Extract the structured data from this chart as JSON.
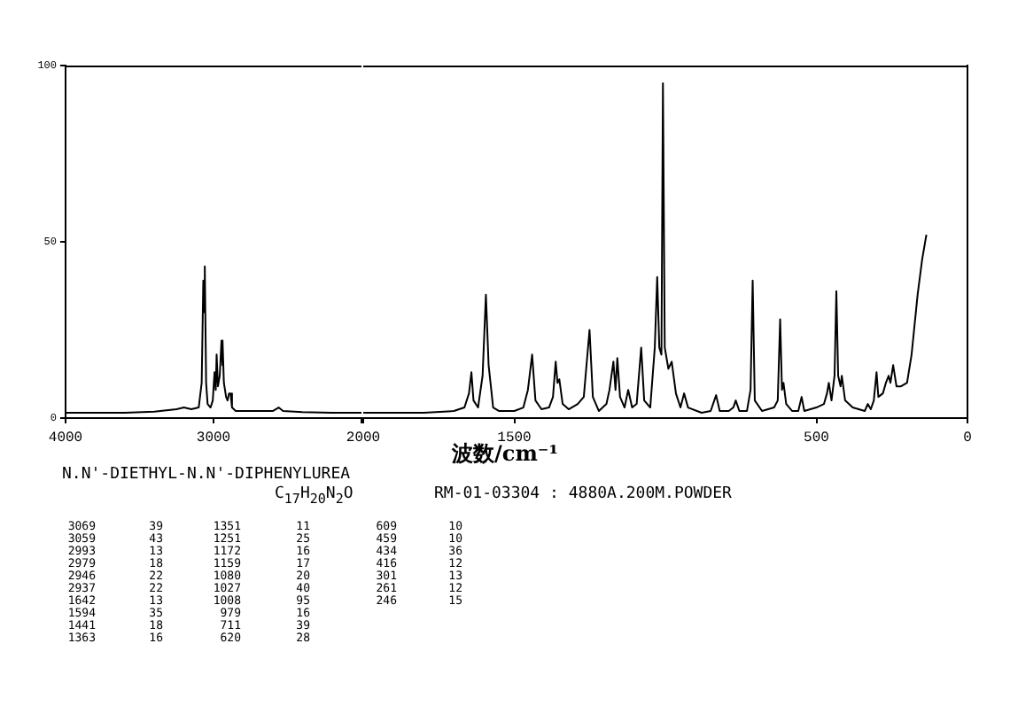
{
  "chart_data": [
    {
      "type": "line",
      "xlabel": "波数/cm⁻¹",
      "xlim": [
        4000,
        2000
      ],
      "xticks": [
        4000,
        3000,
        {
          "value": 2000,
          "label": null
        }
      ],
      "ylim": [
        0,
        100
      ],
      "yticks": [
        0,
        50,
        100
      ],
      "grid": false,
      "legend": false,
      "marker": "none",
      "annotations": [
        "N.N'-DIETHYL-N.N'-DIPHENYLUREA",
        "C$_{17}$H$_{20}$N$_{2}$O",
        "RM-01-03304 : 4880A.200M.POWDER",
        "3069",
        "39",
        "3059",
        "43",
        "2993",
        "13",
        "2979",
        "18",
        "2946",
        "22",
        "2937",
        "22",
        "1642",
        "13",
        "1594",
        "35",
        "1441",
        "18",
        "1363",
        "16",
        "1351",
        "11",
        "1251",
        "25",
        "1172",
        "16",
        "1159",
        "17",
        "1080",
        "20",
        "1027",
        "40",
        "1008",
        "95",
        "979",
        "16",
        "711",
        "39",
        "620",
        "28",
        "609",
        "10",
        "459",
        "10",
        "434",
        "36",
        "416",
        "12",
        "301",
        "13",
        "261",
        "12",
        "246",
        "15"
      ],
      "series": [
        {
          "color": "#000000",
          "x": [
            4000,
            3800,
            3600,
            3400,
            3250,
            3200,
            3150,
            3100,
            3080,
            3069,
            3064,
            3059,
            3050,
            3040,
            3020,
            3005,
            2993,
            2985,
            2979,
            2970,
            2958,
            2946,
            2941,
            2937,
            2930,
            2915,
            2905,
            2895,
            2885,
            2875,
            2850,
            2700,
            2600,
            2560,
            2530,
            2400,
            2200,
            2000
          ],
          "values": [
            1.5,
            1.5,
            1.5,
            1.8,
            2.5,
            3,
            2.5,
            3,
            10,
            39,
            30,
            43,
            10,
            4,
            3,
            5,
            13,
            8,
            18,
            9,
            12,
            22,
            15,
            22,
            10,
            6,
            5,
            7,
            7,
            3,
            2,
            2,
            2,
            3,
            2,
            1.7,
            1.5,
            1.5
          ]
        }
      ]
    },
    {
      "type": "line",
      "xlim": [
        2000,
        0
      ],
      "xticks": [
        2000,
        1500,
        500,
        0
      ],
      "ylim": [
        0,
        100
      ],
      "yticks": [
        0,
        50,
        100
      ],
      "grid": false,
      "legend": false,
      "marker": "none",
      "tick_labels": "x",
      "series": [
        {
          "color": "#000000",
          "x": [
            2000,
            1800,
            1700,
            1665,
            1650,
            1642,
            1635,
            1620,
            1605,
            1594,
            1585,
            1570,
            1550,
            1500,
            1470,
            1455,
            1441,
            1430,
            1410,
            1385,
            1372,
            1363,
            1357,
            1351,
            1340,
            1320,
            1290,
            1270,
            1251,
            1240,
            1220,
            1195,
            1185,
            1172,
            1165,
            1159,
            1150,
            1135,
            1123,
            1110,
            1095,
            1080,
            1070,
            1050,
            1035,
            1027,
            1020,
            1013,
            1008,
            1002,
            990,
            979,
            965,
            950,
            938,
            925,
            880,
            850,
            832,
            820,
            790,
            775,
            767,
            755,
            730,
            718,
            711,
            704,
            680,
            640,
            628,
            620,
            614,
            609,
            600,
            580,
            560,
            549,
            540,
            500,
            475,
            465,
            459,
            450,
            440,
            434,
            428,
            420,
            416,
            405,
            380,
            340,
            330,
            320,
            310,
            301,
            295,
            280,
            270,
            261,
            255,
            246,
            235,
            220,
            200,
            185,
            165,
            150,
            136
          ],
          "values": [
            1.5,
            1.5,
            2,
            3,
            7,
            13,
            5,
            3,
            12,
            35,
            15,
            3,
            2,
            2,
            3,
            8,
            18,
            5,
            2.5,
            3,
            6,
            16,
            10,
            11,
            4,
            2.5,
            4,
            6,
            25,
            6,
            2,
            4,
            8,
            16,
            8,
            17,
            6,
            3,
            8,
            3,
            4,
            20,
            5,
            3,
            20,
            40,
            20,
            18,
            95,
            20,
            14,
            16,
            7,
            3,
            7,
            3,
            1.5,
            2,
            6.5,
            2,
            2,
            3,
            5,
            2,
            2,
            8,
            39,
            5,
            2,
            3,
            5,
            28,
            8,
            10,
            4,
            2,
            2,
            6,
            2,
            3,
            4,
            7,
            10,
            5,
            12,
            36,
            12,
            9,
            12,
            5,
            3,
            2,
            4,
            2.5,
            5,
            13,
            6,
            7,
            10,
            12,
            10,
            15,
            9,
            9,
            10,
            18,
            35,
            45,
            52
          ]
        }
      ]
    }
  ]
}
